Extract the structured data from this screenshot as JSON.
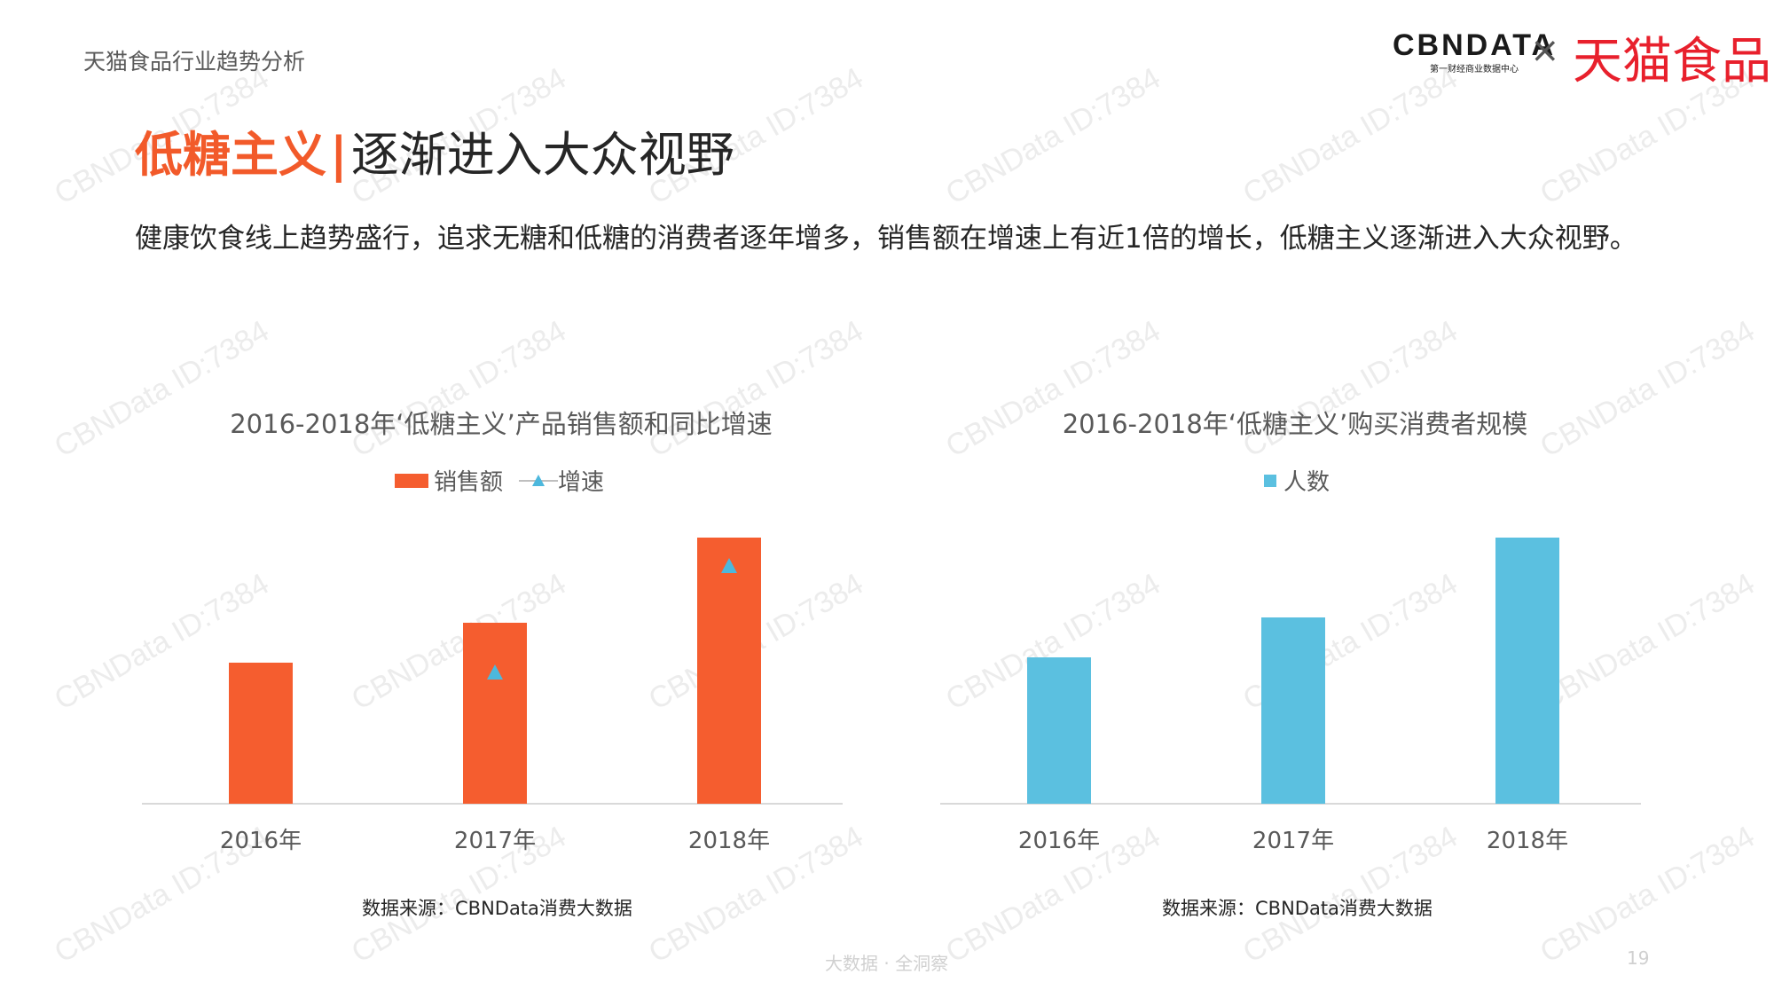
{
  "report_title": "天猫食品行业趋势分析",
  "logos": {
    "cbn_main": "CBNDATA",
    "cbn_sub": "第一财经商业数据中心",
    "times": "×",
    "tmall": "天猫食品"
  },
  "heading": {
    "accent": "低糖主义",
    "separator": "|",
    "rest": "逐渐进入大众视野"
  },
  "intro": "健康饮食线上趋势盛行，追求无糖和低糖的消费者逐年增多，销售额在增速上有近1倍的增长，低糖主义逐渐进入大众视野。",
  "watermark_text": "CBNData ID:7384",
  "colors": {
    "accent": "#f25a2a",
    "bar_left": "#f55d2f",
    "bar_right": "#5bc0e0",
    "marker": "#4db8dd",
    "axis": "#d9d9d9"
  },
  "chart_data": [
    {
      "type": "bar",
      "title": "2016-2018年‘低糖主义’产品销售额和同比增速",
      "legend": [
        "销售额",
        "增速"
      ],
      "legend_placement": "top",
      "categories": [
        "2016年",
        "2017年",
        "2018年"
      ],
      "series": [
        {
          "name": "销售额",
          "type": "bar",
          "values": [
            0.53,
            0.68,
            1.0
          ]
        },
        {
          "name": "增速",
          "type": "line-markers",
          "values": [
            null,
            0.49,
            0.89
          ]
        }
      ],
      "y_axis_shown": false,
      "grid": false,
      "source": "数据来源：CBNData消费大数据"
    },
    {
      "type": "bar",
      "title": "2016-2018年‘低糖主义’购买消费者规模",
      "legend": [
        "人数"
      ],
      "legend_placement": "top",
      "categories": [
        "2016年",
        "2017年",
        "2018年"
      ],
      "series": [
        {
          "name": "人数",
          "type": "bar",
          "values": [
            0.55,
            0.7,
            1.0
          ]
        }
      ],
      "y_axis_shown": false,
      "grid": false,
      "source": "数据来源：CBNData消费大数据"
    }
  ],
  "footer": {
    "tagline": "大数据 · 全洞察",
    "page_number": "19"
  }
}
